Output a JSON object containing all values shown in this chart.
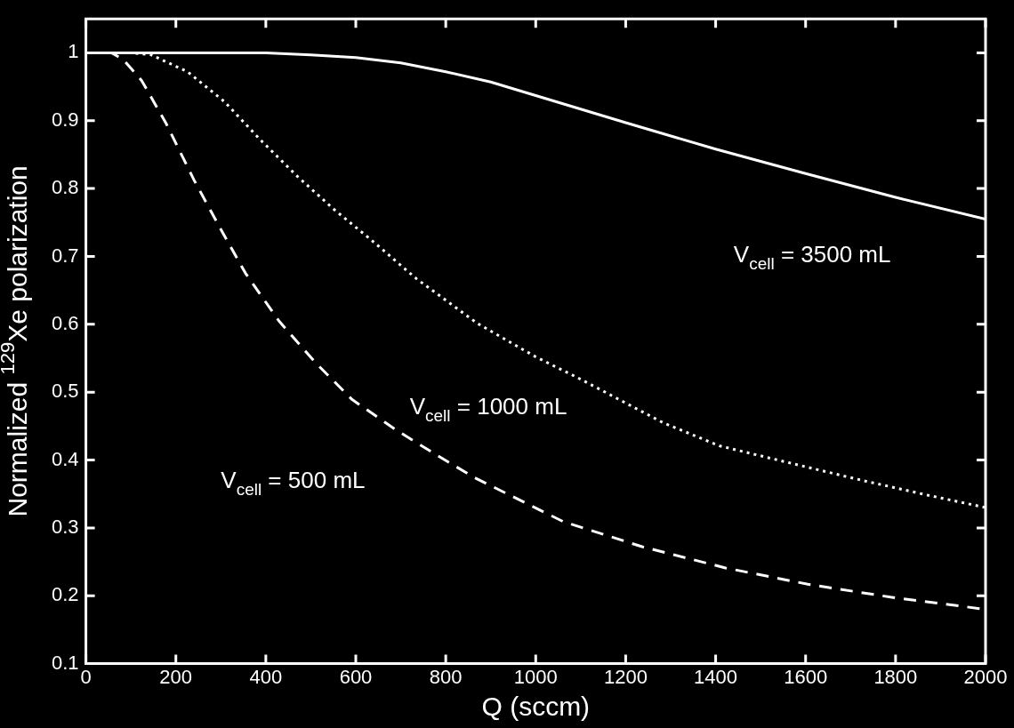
{
  "chart_data": {
    "type": "line",
    "xlabel": "Q (sccm)",
    "ylabel": "Normalized $^{129}$Xe polarization",
    "xlim": [
      0,
      2000
    ],
    "xticks": [
      0,
      200,
      400,
      600,
      800,
      1000,
      1200,
      1400,
      1600,
      1800,
      2000
    ],
    "ylim": [
      0.1,
      1.05
    ],
    "yticks": [
      0.1,
      0.2,
      0.3,
      0.4,
      0.5,
      0.6,
      0.7,
      0.8,
      0.9,
      1
    ],
    "grid": false,
    "series": [
      {
        "name": "V$_{cell}$ = 3500 mL",
        "color": "#ffffff",
        "line_style": "solid",
        "x": [
          0,
          200,
          400,
          500,
          600,
          700,
          800,
          900,
          1000,
          1200,
          1400,
          1600,
          1800,
          2000
        ],
        "values": [
          1,
          1,
          1,
          0.997,
          0.993,
          0.985,
          0.972,
          0.957,
          0.937,
          0.897,
          0.858,
          0.822,
          0.787,
          0.755
        ]
      },
      {
        "name": "V$_{cell}$ = 1000 mL",
        "color": "#ffffff",
        "line_style": "dotted",
        "x": [
          0,
          100,
          145,
          226,
          308,
          389,
          470,
          552,
          633,
          735,
          871,
          1000,
          1100,
          1283,
          1408,
          1563,
          1713,
          1866,
          2000
        ],
        "values": [
          1,
          1,
          0.997,
          0.972,
          0.928,
          0.871,
          0.818,
          0.769,
          0.725,
          0.667,
          0.601,
          0.552,
          0.519,
          0.455,
          0.421,
          0.396,
          0.372,
          0.349,
          0.33
        ]
      },
      {
        "name": "V$_{cell}$ = 500 mL",
        "color": "#ffffff",
        "line_style": "dashed",
        "x": [
          0,
          57,
          83,
          124,
          179,
          240,
          298,
          355,
          429,
          511,
          592,
          688,
          783,
          864,
          1062,
          1238,
          1422,
          1605,
          1789,
          2000
        ],
        "values": [
          1,
          1,
          0.99,
          0.959,
          0.895,
          0.813,
          0.742,
          0.675,
          0.605,
          0.543,
          0.489,
          0.445,
          0.406,
          0.374,
          0.309,
          0.272,
          0.241,
          0.217,
          0.198,
          0.18
        ]
      }
    ]
  }
}
